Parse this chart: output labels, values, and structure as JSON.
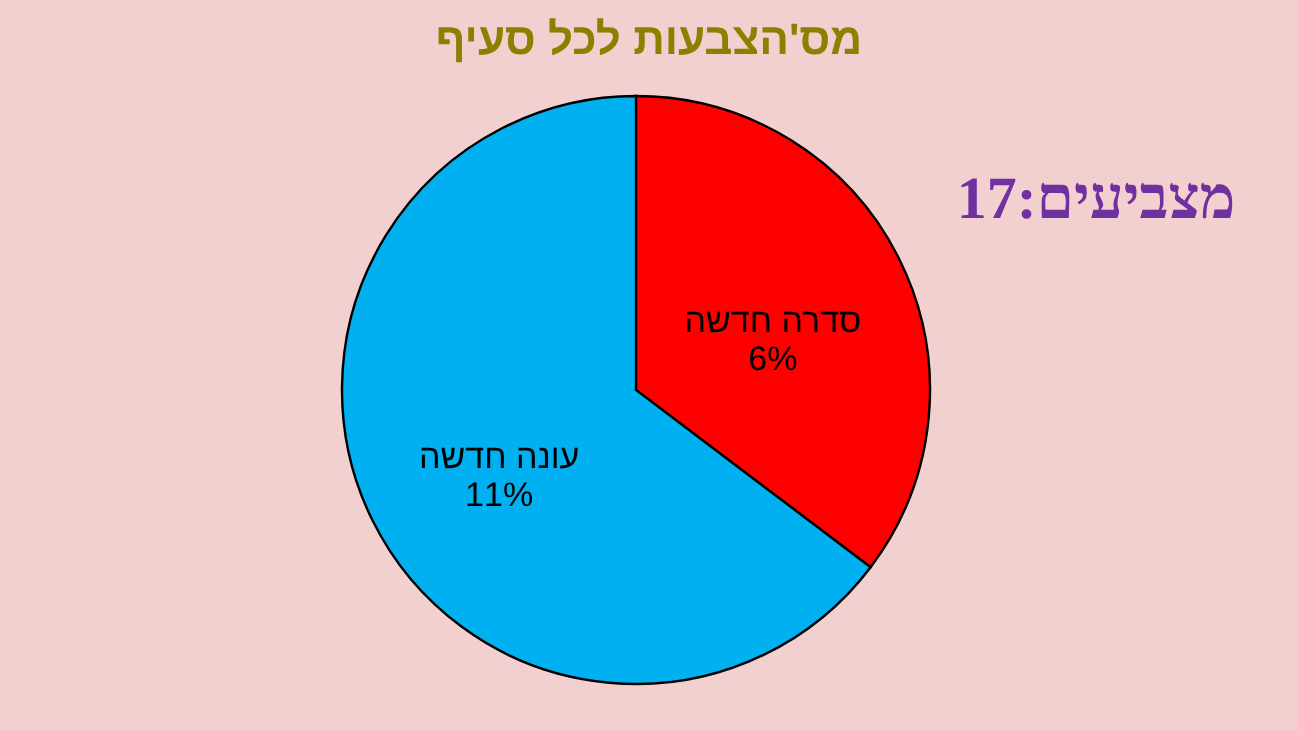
{
  "chart_data": {
    "type": "pie",
    "title": "מס'הצבעות לכל סעיף",
    "categories": [
      "סדרה חדשה",
      "עונה חדשה"
    ],
    "values": [
      6,
      11
    ],
    "colors": [
      "#ff0000",
      "#00b0f0"
    ],
    "value_labels": [
      "6%",
      "11%"
    ],
    "annotations": [
      "מצביעים:17"
    ]
  }
}
